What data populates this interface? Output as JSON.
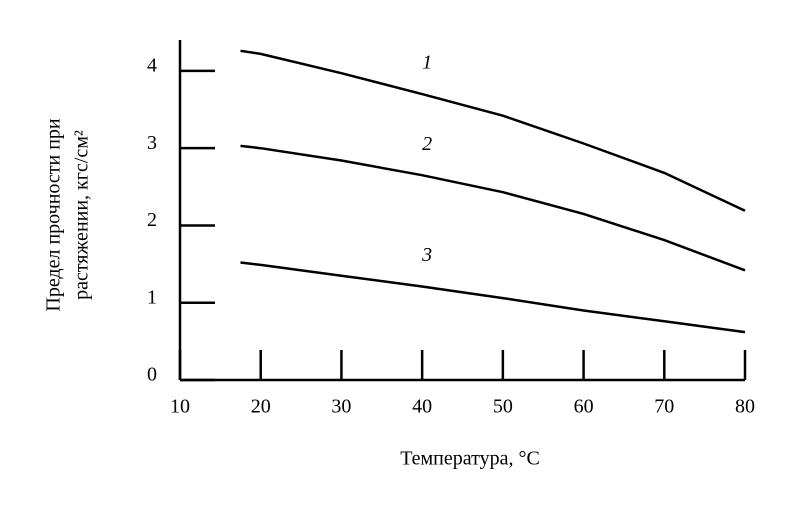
{
  "chart_data": {
    "type": "line",
    "x_label": "Температура, °C",
    "y_label": [
      "Предел прочности при",
      "растяжении, кгс/см²"
    ],
    "x": [
      17.5,
      20,
      30,
      40,
      50,
      60,
      70,
      80
    ],
    "series": [
      {
        "name": "1",
        "color": "#000000",
        "values": [
          4.26,
          4.22,
          3.97,
          3.7,
          3.42,
          3.06,
          2.68,
          2.19
        ]
      },
      {
        "name": "2",
        "color": "#000000",
        "values": [
          3.03,
          3.0,
          2.84,
          2.65,
          2.43,
          2.15,
          1.81,
          1.42
        ]
      },
      {
        "name": "3",
        "color": "#000000",
        "values": [
          1.52,
          1.49,
          1.35,
          1.21,
          1.06,
          0.9,
          0.76,
          0.62
        ]
      }
    ],
    "xlim": [
      10,
      80
    ],
    "xticks": [
      10,
      20,
      30,
      40,
      50,
      60,
      70,
      80
    ],
    "ylim": [
      0,
      4.4
    ],
    "yticks": [
      0,
      1,
      2,
      3,
      4
    ]
  }
}
